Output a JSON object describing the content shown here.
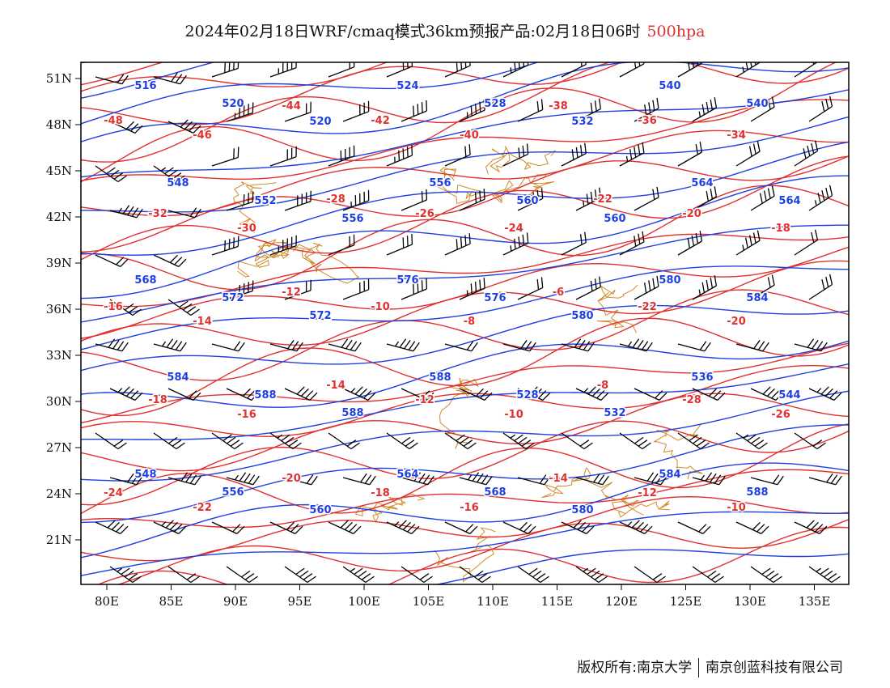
{
  "title": "2024年02月18日WRF/cmaq模式36km预报产品:02月18日06时",
  "level": "500hpa",
  "footer": {
    "left": "版权所有:南京大学",
    "right": "南京创蓝科技有限公司"
  },
  "colors": {
    "height_contour": "#1f3fe0",
    "temperature_contour": "#e03030",
    "boundary": "#d08a2a",
    "wind_barb": "#000000",
    "frame": "#000000"
  },
  "axes": {
    "lon": [
      "80E",
      "85E",
      "90E",
      "95E",
      "100E",
      "105E",
      "110E",
      "115E",
      "120E",
      "125E",
      "130E",
      "135E"
    ],
    "lat": [
      "51N",
      "48N",
      "45N",
      "42N",
      "39N",
      "36N",
      "33N",
      "30N",
      "27N",
      "24N",
      "21N"
    ]
  },
  "height_labels": [
    "516",
    "520",
    "520",
    "524",
    "528",
    "532",
    "540",
    "540",
    "548",
    "552",
    "556",
    "556",
    "560",
    "560",
    "564",
    "564",
    "568",
    "572",
    "572",
    "576",
    "576",
    "580",
    "580",
    "584",
    "584",
    "588",
    "588",
    "588",
    "528",
    "532",
    "536",
    "544",
    "548",
    "556",
    "560",
    "564",
    "568",
    "580",
    "584",
    "588"
  ],
  "temperature_labels": [
    "-48",
    "-46",
    "-44",
    "-42",
    "-40",
    "-38",
    "-36",
    "-34",
    "-32",
    "-30",
    "-28",
    "-26",
    "-24",
    "-22",
    "-20",
    "-18",
    "-16",
    "-14",
    "-12",
    "-10",
    "-8",
    "-6",
    "-22",
    "-20",
    "-18",
    "-16",
    "-14",
    "-12",
    "-10",
    "-8",
    "-28",
    "-26",
    "-24",
    "-22",
    "-20",
    "-18",
    "-16",
    "-14",
    "-12",
    "-10"
  ]
}
